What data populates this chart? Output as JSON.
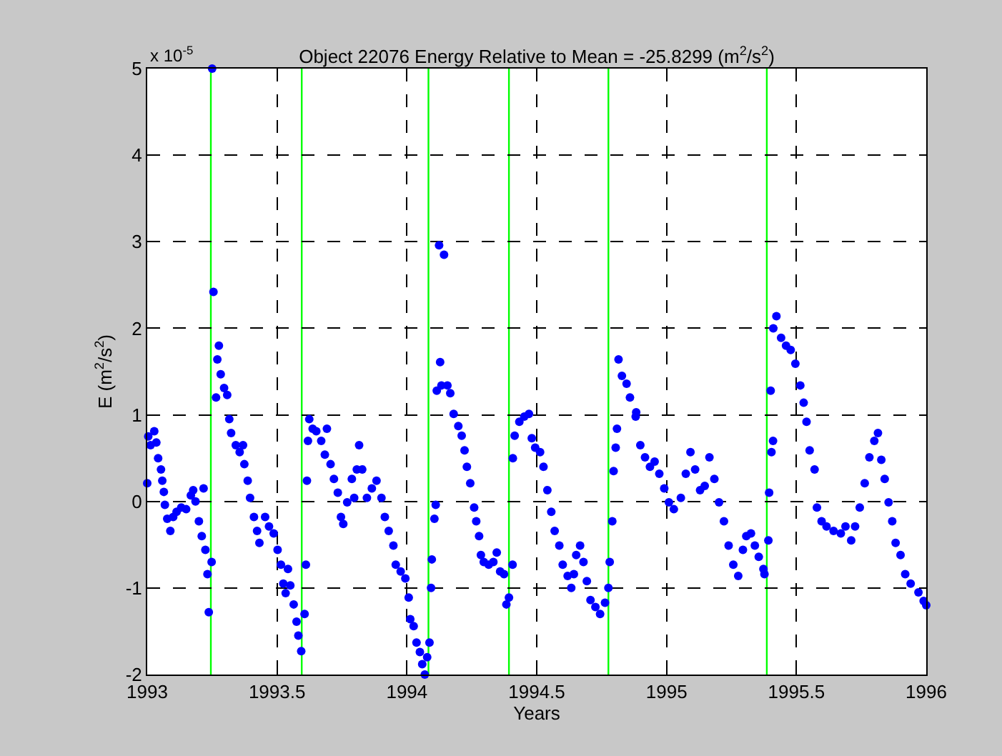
{
  "chart_data": {
    "type": "scatter",
    "title": "Object 22076 Energy Relative to Mean = -25.8299 (m$^{2}$/s$^{2}$)",
    "xlabel": "Years",
    "ylabel": "E (m$^{2}$/s$^{2}$)",
    "annotations": [
      "x 10$^{-5}$"
    ],
    "series": [
      {
        "color": "#0000ff",
        "x": [
          1993.0,
          1993.004,
          1993.013,
          1993.027,
          1993.035,
          1993.042,
          1993.053,
          1993.058,
          1993.064,
          1993.068,
          1993.077,
          1993.089,
          1993.1,
          1993.113,
          1993.131,
          1993.15,
          1993.168,
          1993.177,
          1993.186,
          1993.199,
          1993.21,
          1993.217,
          1993.224,
          1993.232,
          1993.237,
          1993.248,
          1993.25,
          1993.255,
          1993.265,
          1993.27,
          1993.276,
          1993.283,
          1993.296,
          1993.308,
          1993.316,
          1993.323,
          1993.341,
          1993.356,
          1993.369,
          1993.374,
          1993.387,
          1993.396,
          1993.411,
          1993.423,
          1993.432,
          1993.454,
          1993.469,
          1993.487,
          1993.502,
          1993.515,
          1993.524,
          1993.533,
          1993.542,
          1993.551,
          1993.564,
          1993.575,
          1993.582,
          1993.593,
          1993.606,
          1993.611,
          1993.615,
          1993.619,
          1993.624,
          1993.637,
          1993.651,
          1993.67,
          1993.684,
          1993.692,
          1993.706,
          1993.719,
          1993.734,
          1993.746,
          1993.755,
          1993.77,
          1993.788,
          1993.797,
          1993.807,
          1993.816,
          1993.828,
          1993.846,
          1993.865,
          1993.883,
          1993.902,
          1993.915,
          1993.93,
          1993.948,
          1993.957,
          1993.976,
          1993.994,
          1994.007,
          1994.013,
          1994.026,
          1994.037,
          1994.05,
          1994.059,
          1994.069,
          1994.078,
          1994.087,
          1994.093,
          1994.096,
          1994.106,
          1994.111,
          1994.115,
          1994.124,
          1994.128,
          1994.133,
          1994.143,
          1994.156,
          1994.167,
          1994.18,
          1994.198,
          1994.211,
          1994.222,
          1994.231,
          1994.244,
          1994.259,
          1994.267,
          1994.278,
          1994.285,
          1994.296,
          1994.315,
          1994.333,
          1994.346,
          1994.359,
          1994.374,
          1994.383,
          1994.393,
          1994.407,
          1994.408,
          1994.415,
          1994.433,
          1994.452,
          1994.47,
          1994.481,
          1994.494,
          1994.513,
          1994.526,
          1994.541,
          1994.556,
          1994.569,
          1994.587,
          1994.6,
          1994.619,
          1994.633,
          1994.643,
          1994.652,
          1994.667,
          1994.68,
          1994.693,
          1994.707,
          1994.726,
          1994.744,
          1994.763,
          1994.776,
          1994.781,
          1994.791,
          1994.796,
          1994.804,
          1994.809,
          1994.815,
          1994.828,
          1994.846,
          1994.859,
          1994.883,
          1994.881,
          1994.899,
          1994.917,
          1994.936,
          1994.954,
          1994.972,
          1994.991,
          1995.009,
          1995.028,
          1995.055,
          1995.074,
          1995.092,
          1995.11,
          1995.129,
          1995.147,
          1995.165,
          1995.184,
          1995.202,
          1995.221,
          1995.239,
          1995.257,
          1995.276,
          1995.294,
          1995.307,
          1995.325,
          1995.34,
          1995.355,
          1995.373,
          1995.377,
          1995.392,
          1995.395,
          1995.401,
          1995.404,
          1995.41,
          1995.411,
          1995.423,
          1995.441,
          1995.46,
          1995.478,
          1995.496,
          1995.515,
          1995.528,
          1995.539,
          1995.551,
          1995.57,
          1995.579,
          1995.597,
          1995.616,
          1995.643,
          1995.671,
          1995.689,
          1995.711,
          1995.726,
          1995.744,
          1995.763,
          1995.781,
          1995.8,
          1995.814,
          1995.827,
          1995.84,
          1995.855,
          1995.869,
          1995.882,
          1995.901,
          1995.919,
          1995.94,
          1995.97,
          1995.99,
          1996.0
        ],
        "values": [
          0.21,
          0.75,
          0.65,
          0.81,
          0.68,
          0.5,
          0.37,
          0.24,
          0.11,
          -0.04,
          -0.2,
          -0.34,
          -0.18,
          -0.12,
          -0.07,
          -0.09,
          0.07,
          0.13,
          0.0,
          -0.23,
          -0.4,
          0.15,
          -0.56,
          -0.84,
          -1.28,
          -0.7,
          5.0,
          2.42,
          1.2,
          1.64,
          1.8,
          1.47,
          1.31,
          1.23,
          0.95,
          0.79,
          0.65,
          0.57,
          0.65,
          0.43,
          0.24,
          0.04,
          -0.18,
          -0.34,
          -0.48,
          -0.18,
          -0.29,
          -0.37,
          -0.56,
          -0.73,
          -0.95,
          -1.06,
          -0.78,
          -0.97,
          -1.19,
          -1.39,
          -1.55,
          -1.73,
          -1.3,
          -0.73,
          0.24,
          0.7,
          0.95,
          0.84,
          0.81,
          0.7,
          0.54,
          0.84,
          0.43,
          0.26,
          0.1,
          -0.18,
          -0.26,
          -0.01,
          0.26,
          0.04,
          0.37,
          0.65,
          0.37,
          0.04,
          0.15,
          0.24,
          0.04,
          -0.18,
          -0.34,
          -0.51,
          -0.73,
          -0.81,
          -0.89,
          -1.11,
          -1.36,
          -1.44,
          -1.63,
          -1.74,
          -1.88,
          -2.0,
          -1.8,
          -1.63,
          -1.0,
          -0.67,
          -0.2,
          -0.04,
          1.28,
          2.96,
          1.61,
          1.34,
          2.85,
          1.34,
          1.25,
          1.01,
          0.87,
          0.76,
          0.59,
          0.4,
          0.21,
          -0.07,
          -0.23,
          -0.4,
          -0.62,
          -0.7,
          -0.73,
          -0.7,
          -0.59,
          -0.81,
          -0.84,
          -1.19,
          -1.11,
          -0.73,
          0.5,
          0.76,
          0.92,
          0.98,
          1.01,
          0.73,
          0.62,
          0.57,
          0.4,
          0.13,
          -0.12,
          -0.34,
          -0.51,
          -0.73,
          -0.86,
          -1.0,
          -0.84,
          -0.62,
          -0.51,
          -0.7,
          -0.92,
          -1.14,
          -1.22,
          -1.3,
          -1.17,
          -1.0,
          -0.7,
          -0.23,
          0.35,
          0.62,
          0.84,
          1.64,
          1.45,
          1.36,
          1.2,
          1.03,
          0.98,
          0.65,
          0.51,
          0.4,
          0.46,
          0.32,
          0.15,
          -0.01,
          -0.09,
          0.04,
          0.32,
          0.57,
          0.37,
          0.13,
          0.18,
          0.51,
          0.26,
          -0.01,
          -0.23,
          -0.51,
          -0.73,
          -0.86,
          -0.56,
          -0.4,
          -0.37,
          -0.51,
          -0.64,
          -0.78,
          -0.84,
          -0.45,
          0.1,
          1.28,
          0.57,
          0.7,
          2.0,
          2.14,
          1.89,
          1.8,
          1.75,
          1.59,
          1.34,
          1.14,
          0.92,
          0.59,
          0.37,
          -0.07,
          -0.23,
          -0.29,
          -0.34,
          -0.37,
          -0.29,
          -0.45,
          -0.29,
          -0.07,
          0.21,
          0.51,
          0.7,
          0.79,
          0.48,
          0.26,
          -0.01,
          -0.23,
          -0.48,
          -0.62,
          -0.84,
          -0.95,
          -1.05,
          -1.15,
          -1.2
        ]
      }
    ],
    "marker": "circle",
    "grid": true,
    "xlim": [
      1993,
      1996
    ],
    "xticks": [
      1993,
      1993.5,
      1994,
      1994.5,
      1995,
      1995.5,
      1996
    ],
    "ylim": [
      -2,
      5
    ],
    "yticks": [
      -2,
      -1,
      0,
      1,
      2,
      3,
      4,
      5
    ],
    "ref_lines": [
      {
        "axis": "x",
        "value": 1993.245,
        "color": "#00ff00"
      },
      {
        "axis": "x",
        "value": 1993.595,
        "color": "#00ff00"
      },
      {
        "axis": "x",
        "value": 1994.083,
        "color": "#00ff00"
      },
      {
        "axis": "x",
        "value": 1994.393,
        "color": "#00ff00"
      },
      {
        "axis": "x",
        "value": 1994.776,
        "color": "#00ff00"
      },
      {
        "axis": "x",
        "value": 1995.386,
        "color": "#00ff00"
      }
    ]
  }
}
